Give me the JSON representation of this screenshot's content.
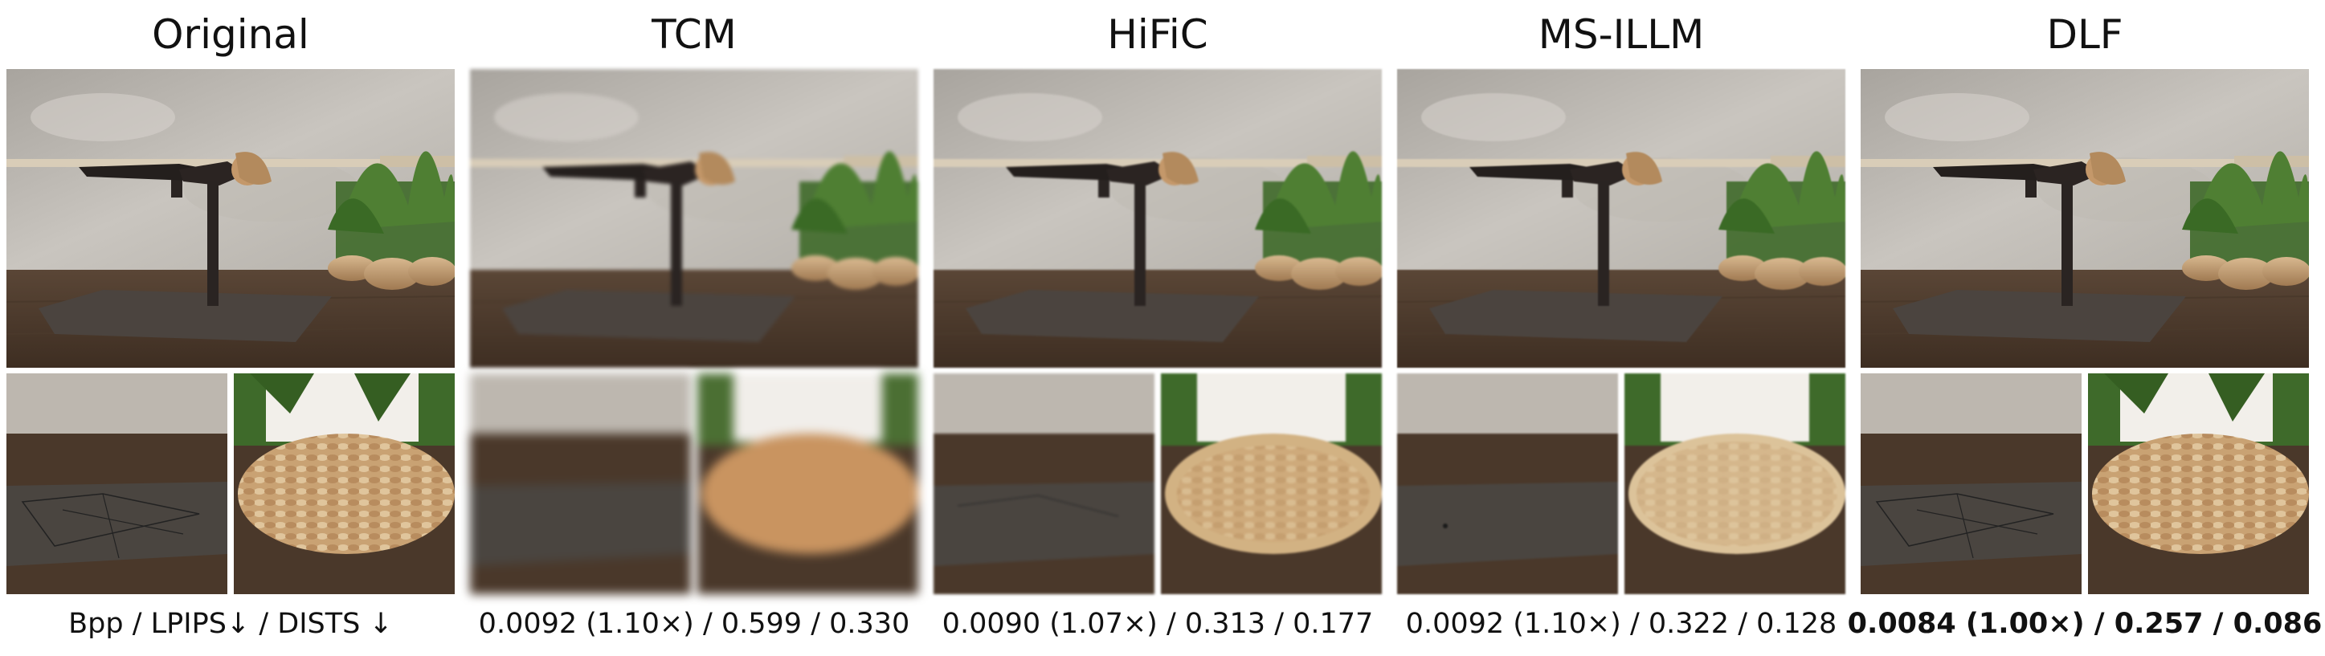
{
  "figure": {
    "methods": [
      {
        "name": "Original",
        "metric": "Bpp / LPIPS↓ / DISTS ↓",
        "bold": false
      },
      {
        "name": "TCM",
        "metric": "0.0092 (1.10×) / 0.599 / 0.330",
        "bold": false
      },
      {
        "name": "HiFiC",
        "metric": "0.0090 (1.07×) / 0.313 / 0.177",
        "bold": false
      },
      {
        "name": "MS-ILLM",
        "metric": "0.0092 (1.10×) / 0.322 / 0.128",
        "bold": false
      },
      {
        "name": "DLF",
        "metric": "0.0084 (1.00×) / 0.257 / 0.086",
        "bold": true
      }
    ]
  }
}
